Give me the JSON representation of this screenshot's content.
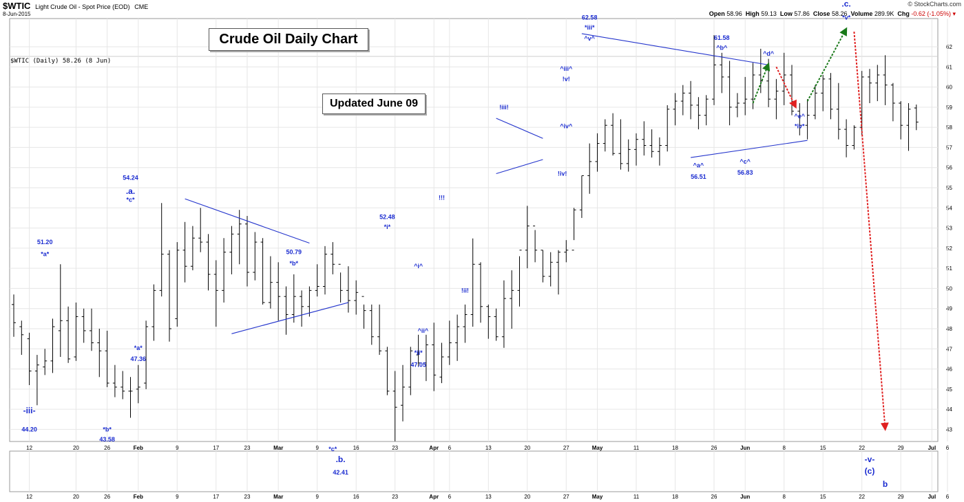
{
  "header": {
    "symbol": "$WTIC",
    "description": "Light Crude Oil - Spot Price (EOD)",
    "exchange": "CME",
    "date": "8-Jun-2015",
    "brand": "© StockCharts.com",
    "open_label": "Open",
    "open": "58.96",
    "high_label": "High",
    "high": "59.13",
    "low_label": "Low",
    "low": "57.86",
    "close_label": "Close",
    "close": "58.26",
    "volume_label": "Volume",
    "volume": "289.9K",
    "chg_label": "Chg",
    "chg": "-0.62 (-1.05%)"
  },
  "chart_caption": "$WTIC (Daily) 58.26 (8 Jun)",
  "title_box": "Crude Oil Daily Chart",
  "updated_box": "Updated June 09",
  "chart_data": {
    "type": "ohlc",
    "ylim": [
      42.4,
      63.4
    ],
    "y_ticks": [
      43,
      44,
      45,
      46,
      47,
      48,
      49,
      50,
      51,
      52,
      53,
      54,
      55,
      56,
      57,
      58,
      59,
      60,
      61,
      62
    ],
    "x_ticks": [
      {
        "label": "12",
        "x": 2
      },
      {
        "label": "20",
        "x": 8
      },
      {
        "label": "26",
        "x": 12
      },
      {
        "label": "Feb",
        "x": 16
      },
      {
        "label": "9",
        "x": 21
      },
      {
        "label": "17",
        "x": 26
      },
      {
        "label": "23",
        "x": 30
      },
      {
        "label": "Mar",
        "x": 34
      },
      {
        "label": "9",
        "x": 39
      },
      {
        "label": "16",
        "x": 44
      },
      {
        "label": "23",
        "x": 49
      },
      {
        "label": "Apr",
        "x": 54
      },
      {
        "label": "6",
        "x": 56
      },
      {
        "label": "13",
        "x": 61
      },
      {
        "label": "20",
        "x": 66
      },
      {
        "label": "27",
        "x": 71
      },
      {
        "label": "May",
        "x": 75
      },
      {
        "label": "11",
        "x": 80
      },
      {
        "label": "18",
        "x": 85
      },
      {
        "label": "26",
        "x": 90
      },
      {
        "label": "Jun",
        "x": 94
      },
      {
        "label": "8",
        "x": 99
      },
      {
        "label": "15",
        "x": 104
      },
      {
        "label": "22",
        "x": 109
      },
      {
        "label": "29",
        "x": 114
      },
      {
        "label": "Jul",
        "x": 118
      },
      {
        "label": "6",
        "x": 120
      }
    ],
    "bars": [
      [
        0,
        49.2,
        49.7,
        47.6,
        48.3
      ],
      [
        1,
        48.1,
        48.4,
        46.7,
        47.7
      ],
      [
        2,
        47.5,
        47.8,
        45.2,
        45.9
      ],
      [
        3,
        45.9,
        46.7,
        44.2,
        46.2
      ],
      [
        4,
        46.1,
        47.0,
        45.7,
        46.4
      ],
      [
        5,
        46.4,
        48.5,
        45.8,
        48.1
      ],
      [
        6,
        47.9,
        51.2,
        46.6,
        48.4
      ],
      [
        7,
        48.4,
        49.1,
        46.3,
        46.5
      ],
      [
        8,
        46.6,
        49.3,
        46.4,
        48.6
      ],
      [
        9,
        48.6,
        49.0,
        47.3,
        47.9
      ],
      [
        10,
        47.9,
        49.0,
        46.9,
        47.3
      ],
      [
        11,
        47.3,
        48.0,
        45.6,
        46.9
      ],
      [
        12,
        46.9,
        47.9,
        45.1,
        45.3
      ],
      [
        13,
        45.3,
        46.2,
        44.6,
        45.1
      ],
      [
        14,
        45.1,
        45.9,
        44.5,
        44.9
      ],
      [
        15,
        44.9,
        45.6,
        43.58,
        44.9
      ],
      [
        16,
        45.0,
        46.2,
        44.3,
        45.1
      ],
      [
        17,
        45.3,
        48.4,
        45.0,
        48.1
      ],
      [
        18,
        48.1,
        50.2,
        47.4,
        49.9
      ],
      [
        19,
        49.9,
        54.24,
        49.6,
        51.7
      ],
      [
        20,
        51.7,
        51.9,
        47.36,
        48.0
      ],
      [
        21,
        48.5,
        52.3,
        48.1,
        51.9
      ],
      [
        22,
        51.9,
        53.3,
        50.3,
        51.1
      ],
      [
        23,
        51.1,
        53.1,
        50.9,
        52.5
      ],
      [
        24,
        52.5,
        54.0,
        51.8,
        52.3
      ],
      [
        25,
        52.3,
        52.7,
        49.9,
        50.7
      ],
      [
        26,
        50.7,
        51.4,
        48.1,
        49.9
      ],
      [
        27,
        49.9,
        52.5,
        49.3,
        51.8
      ],
      [
        28,
        51.8,
        53.1,
        50.7,
        52.7
      ],
      [
        29,
        52.7,
        53.9,
        51.2,
        53.2
      ],
      [
        30,
        53.2,
        53.6,
        50.1,
        50.8
      ],
      [
        31,
        50.8,
        52.8,
        50.4,
        52.3
      ],
      [
        32,
        52.3,
        52.5,
        49.2,
        49.3
      ],
      [
        33,
        49.3,
        51.6,
        49.0,
        50.3
      ],
      [
        34,
        50.3,
        51.3,
        48.4,
        49.6
      ],
      [
        35,
        49.6,
        50.1,
        47.7,
        48.7
      ],
      [
        36,
        48.7,
        50.7,
        48.3,
        49.6
      ],
      [
        37,
        49.6,
        49.9,
        48.1,
        49.1
      ],
      [
        38,
        49.1,
        50.1,
        48.6,
        49.9
      ],
      [
        39,
        49.9,
        51.2,
        49.6,
        50.1
      ],
      [
        40,
        50.1,
        52.1,
        49.7,
        51.7
      ],
      [
        41,
        51.7,
        52.3,
        50.7,
        51.2
      ],
      [
        42,
        51.2,
        50.79,
        49.3,
        49.9
      ],
      [
        43,
        49.9,
        51.1,
        48.8,
        49.4
      ],
      [
        44,
        49.4,
        50.4,
        48.7,
        49.8
      ],
      [
        45,
        49.6,
        49.2,
        48.0,
        48.9
      ],
      [
        46,
        48.9,
        49.2,
        47.2,
        47.6
      ],
      [
        47,
        47.6,
        49.2,
        46.7,
        46.9
      ],
      [
        48,
        46.9,
        47.1,
        44.7,
        44.9
      ],
      [
        49,
        44.9,
        45.9,
        42.41,
        44.1
      ],
      [
        50,
        44.2,
        46.2,
        43.4,
        45.1
      ],
      [
        51,
        45.1,
        47.1,
        44.7,
        46.9
      ],
      [
        52,
        46.7,
        47.7,
        46.1,
        46.3
      ],
      [
        53,
        46.3,
        47.7,
        45.4,
        47.2
      ],
      [
        54,
        47.2,
        48.3,
        44.9,
        45.7
      ],
      [
        55,
        45.6,
        47.3,
        45.3,
        46.6
      ],
      [
        56,
        46.6,
        48.4,
        46.2,
        47.3
      ],
      [
        57,
        47.3,
        48.7,
        46.4,
        48.1
      ],
      [
        58,
        48.1,
        49.2,
        47.3,
        48.7
      ],
      [
        59,
        48.7,
        52.48,
        48.1,
        51.2
      ],
      [
        60,
        51.2,
        51.3,
        48.3,
        49.1
      ],
      [
        61,
        49.1,
        49.2,
        47.5,
        48.6
      ],
      [
        62,
        48.6,
        49.0,
        47.4,
        47.6
      ],
      [
        63,
        47.6,
        50.4,
        47.05,
        49.5
      ],
      [
        64,
        49.5,
        50.9,
        48.0,
        49.9
      ],
      [
        65,
        49.9,
        51.6,
        49.1,
        51.9
      ],
      [
        66,
        51.9,
        54.1,
        51.0,
        53.1
      ],
      [
        67,
        53.1,
        52.9,
        51.3,
        51.9
      ],
      [
        68,
        51.9,
        51.9,
        50.3,
        50.6
      ],
      [
        69,
        50.6,
        51.8,
        50.1,
        51.3
      ],
      [
        70,
        51.3,
        51.9,
        49.7,
        51.8
      ],
      [
        71,
        51.8,
        52.4,
        51.3,
        51.9
      ],
      [
        72,
        51.9,
        54.0,
        52.4,
        53.9
      ],
      [
        73,
        53.9,
        55.6,
        53.5,
        55.6
      ],
      [
        74,
        55.6,
        57.2,
        54.7,
        56.3
      ],
      [
        75,
        56.3,
        57.7,
        55.8,
        57.2
      ],
      [
        76,
        57.2,
        58.4,
        56.8,
        58.1
      ],
      [
        77,
        58.1,
        58.7,
        56.6,
        56.7
      ],
      [
        78,
        56.7,
        58.4,
        55.9,
        56.2
      ],
      [
        79,
        56.2,
        57.4,
        55.8,
        56.9
      ],
      [
        80,
        56.9,
        57.7,
        56.1,
        57.4
      ],
      [
        81,
        57.4,
        58.3,
        56.6,
        57.1
      ],
      [
        82,
        57.1,
        57.9,
        56.5,
        56.8
      ],
      [
        83,
        56.8,
        57.5,
        56.1,
        57.1
      ],
      [
        84,
        57.1,
        59.1,
        56.8,
        58.9
      ],
      [
        85,
        58.9,
        59.7,
        58.1,
        59.3
      ],
      [
        86,
        59.3,
        60.1,
        58.6,
        59.7
      ],
      [
        87,
        59.7,
        60.3,
        58.4,
        59.1
      ],
      [
        88,
        59.1,
        59.5,
        57.9,
        58.6
      ],
      [
        89,
        58.6,
        59.6,
        58.1,
        59.4
      ],
      [
        90,
        59.4,
        62.58,
        59.1,
        61.1
      ],
      [
        91,
        61.1,
        61.7,
        59.7,
        60.5
      ],
      [
        92,
        60.5,
        61.3,
        58.1,
        59.0
      ],
      [
        93,
        59.0,
        59.7,
        58.5,
        59.2
      ],
      [
        94,
        59.2,
        60.5,
        58.6,
        59.4
      ],
      [
        95,
        59.4,
        61.2,
        58.9,
        60.6
      ],
      [
        96,
        60.6,
        61.9,
        59.7,
        60.3
      ],
      [
        97,
        60.3,
        61.4,
        59.0,
        59.4
      ],
      [
        98,
        59.4,
        60.4,
        58.4,
        59.8
      ],
      [
        99,
        59.8,
        61.7,
        59.1,
        60.6
      ],
      [
        100,
        60.6,
        61.1,
        58.6,
        58.8
      ],
      [
        101,
        58.8,
        59.2,
        57.6,
        58.1
      ],
      [
        102,
        58.1,
        59.4,
        57.4,
        58.6
      ],
      [
        103,
        58.6,
        60.1,
        58.4,
        59.7
      ],
      [
        104,
        59.7,
        60.6,
        58.8,
        60.4
      ],
      [
        105,
        60.4,
        60.7,
        58.4,
        58.9
      ],
      [
        106,
        58.9,
        60.2,
        57.4,
        57.9
      ],
      [
        107,
        57.9,
        58.4,
        56.51,
        57.1
      ],
      [
        108,
        57.1,
        58.1,
        56.9,
        58.0
      ],
      [
        109,
        58.0,
        60.8,
        57.6,
        60.5
      ],
      [
        110,
        60.5,
        60.9,
        59.2,
        60.2
      ],
      [
        111,
        60.2,
        61.1,
        59.3,
        60.6
      ],
      [
        112,
        60.6,
        61.58,
        59.1,
        60.1
      ],
      [
        113,
        60.1,
        60.2,
        58.3,
        59.2
      ],
      [
        114,
        59.2,
        59.3,
        57.4,
        58.1
      ],
      [
        115,
        58.1,
        59.2,
        56.83,
        58.9
      ],
      [
        116,
        58.96,
        59.13,
        57.86,
        58.26
      ]
    ],
    "trendlines": [
      {
        "x1": 22,
        "y1": 54.45,
        "x2": 38,
        "y2": 52.25
      },
      {
        "x1": 28,
        "y1": 47.75,
        "x2": 43,
        "y2": 49.3
      },
      {
        "x1": 62,
        "y1": 58.45,
        "x2": 68,
        "y2": 57.45
      },
      {
        "x1": 62,
        "y1": 55.7,
        "x2": 68,
        "y2": 56.4
      },
      {
        "x1": 73,
        "y1": 62.65,
        "x2": 97,
        "y2": 61.1
      },
      {
        "x1": 87,
        "y1": 56.5,
        "x2": 102,
        "y2": 57.35
      }
    ],
    "arrows": [
      {
        "color": "green",
        "x1": 95,
        "y1": 59.2,
        "x2": 97,
        "y2": 61.15
      },
      {
        "color": "red",
        "x1": 98,
        "y1": 61.0,
        "x2": 100.5,
        "y2": 59.0
      },
      {
        "color": "green",
        "x1": 102,
        "y1": 59.3,
        "x2": 107,
        "y2": 62.9
      },
      {
        "color": "red",
        "x1": 108,
        "y1": 62.75,
        "x2": 112,
        "y2": 43.0
      }
    ],
    "annotations": [
      {
        "text": "51.20",
        "x": 4,
        "y": 52.2
      },
      {
        "text": "*a*",
        "x": 4,
        "y": 51.6
      },
      {
        "text": "-iii-",
        "x": 2,
        "y": 43.8,
        "size": "large"
      },
      {
        "text": "44.20",
        "x": 2,
        "y": 42.9
      },
      {
        "text": "54.24",
        "x": 15,
        "y": 55.4
      },
      {
        "text": ".a.",
        "x": 15,
        "y": 54.7,
        "size": "large"
      },
      {
        "text": "*c*",
        "x": 15,
        "y": 54.3
      },
      {
        "text": "*a*",
        "x": 16,
        "y": 46.95
      },
      {
        "text": "47.36",
        "x": 16,
        "y": 46.4
      },
      {
        "text": "*b*",
        "x": 12,
        "y": 42.9
      },
      {
        "text": "43.58",
        "x": 12,
        "y": 42.4
      },
      {
        "text": "50.79",
        "x": 36,
        "y": 51.7
      },
      {
        "text": "*b*",
        "x": 36,
        "y": 51.15
      },
      {
        "text": "52.48",
        "x": 48,
        "y": 53.45
      },
      {
        "text": "*i*",
        "x": 48,
        "y": 52.95
      },
      {
        "text": "^i^",
        "x": 52,
        "y": 51.0
      },
      {
        "text": "^ii^",
        "x": 52.6,
        "y": 47.8
      },
      {
        "text": "*ii*",
        "x": 52,
        "y": 46.7
      },
      {
        "text": "47.05",
        "x": 52,
        "y": 46.1
      },
      {
        "text": "!!!",
        "x": 55,
        "y": 54.4
      },
      {
        "text": "!ii!",
        "x": 58,
        "y": 49.8
      },
      {
        "text": "!iii!",
        "x": 63,
        "y": 58.9
      },
      {
        "text": "^iii^",
        "x": 71,
        "y": 60.8
      },
      {
        "text": "!v!",
        "x": 71,
        "y": 60.3
      },
      {
        "text": "^iv^",
        "x": 71,
        "y": 57.95
      },
      {
        "text": "!iv!",
        "x": 70.5,
        "y": 55.6
      },
      {
        "text": "62.58",
        "x": 74,
        "y": 63.35
      },
      {
        "text": "*iii*",
        "x": 74,
        "y": 62.85
      },
      {
        "text": "^v^",
        "x": 74,
        "y": 62.3
      },
      {
        "text": "61.58",
        "x": 91,
        "y": 62.35
      },
      {
        "text": "^b^",
        "x": 91,
        "y": 61.85
      },
      {
        "text": "^a^",
        "x": 88,
        "y": 56.0
      },
      {
        "text": "56.51",
        "x": 88,
        "y": 55.45
      },
      {
        "text": "^c^",
        "x": 94,
        "y": 56.2
      },
      {
        "text": "56.83",
        "x": 94,
        "y": 55.65
      },
      {
        "text": "^d^",
        "x": 97,
        "y": 61.55
      },
      {
        "text": "^e^",
        "x": 101,
        "y": 58.45
      },
      {
        "text": "*iv*",
        "x": 101,
        "y": 57.95
      },
      {
        "text": "-iv-",
        "x": 107,
        "y": 64.6,
        "size": "large"
      },
      {
        "text": ".c.",
        "x": 107,
        "y": 64.0,
        "size": "large"
      },
      {
        "text": "*v*",
        "x": 107,
        "y": 63.35
      }
    ],
    "lower_panel_annotations": [
      {
        "text": "*c*",
        "x": 41,
        "y": 656
      },
      {
        "text": ".b.",
        "x": 42,
        "y": 672
      },
      {
        "text": "42.41",
        "x": 42,
        "y": 690
      },
      {
        "text": "-v-",
        "x": 110,
        "y": 672
      },
      {
        "text": "(c)",
        "x": 110,
        "y": 689
      },
      {
        "text": "b",
        "x": 112,
        "y": 708
      }
    ]
  }
}
